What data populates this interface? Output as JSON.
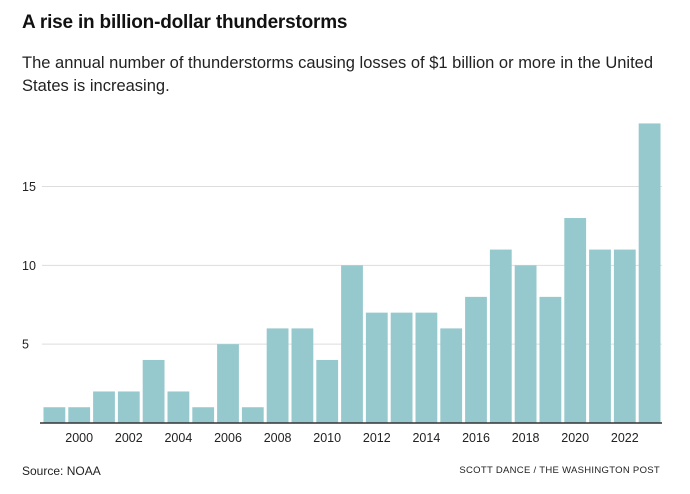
{
  "header": {
    "title": "A rise in billion-dollar thunderstorms",
    "subtitle": "The annual number of thunderstorms causing losses of $1 billion or more in the United States is increasing."
  },
  "footer": {
    "source": "Source: NOAA",
    "credit": "SCOTT DANCE / THE WASHINGTON POST"
  },
  "colors": {
    "bar": "#96c9ce",
    "grid": "#dddddd",
    "axis": "#333333"
  },
  "chart_data": {
    "type": "bar",
    "title": "A rise in billion-dollar thunderstorms",
    "xlabel": "",
    "ylabel": "",
    "categories": [
      1999,
      2000,
      2001,
      2002,
      2003,
      2004,
      2005,
      2006,
      2007,
      2008,
      2009,
      2010,
      2011,
      2012,
      2013,
      2014,
      2015,
      2016,
      2017,
      2018,
      2019,
      2020,
      2021,
      2022,
      2023
    ],
    "values": [
      1,
      1,
      2,
      2,
      4,
      2,
      1,
      5,
      1,
      6,
      6,
      4,
      10,
      7,
      7,
      7,
      6,
      8,
      11,
      10,
      8,
      13,
      11,
      11,
      19
    ],
    "x_tick_labels": [
      "2000",
      "2002",
      "2004",
      "2006",
      "2008",
      "2010",
      "2012",
      "2014",
      "2016",
      "2018",
      "2020",
      "2022"
    ],
    "y_tick_labels": [
      "5",
      "10",
      "15"
    ],
    "ylim": [
      0,
      19
    ],
    "grid": true,
    "legend": "none"
  }
}
